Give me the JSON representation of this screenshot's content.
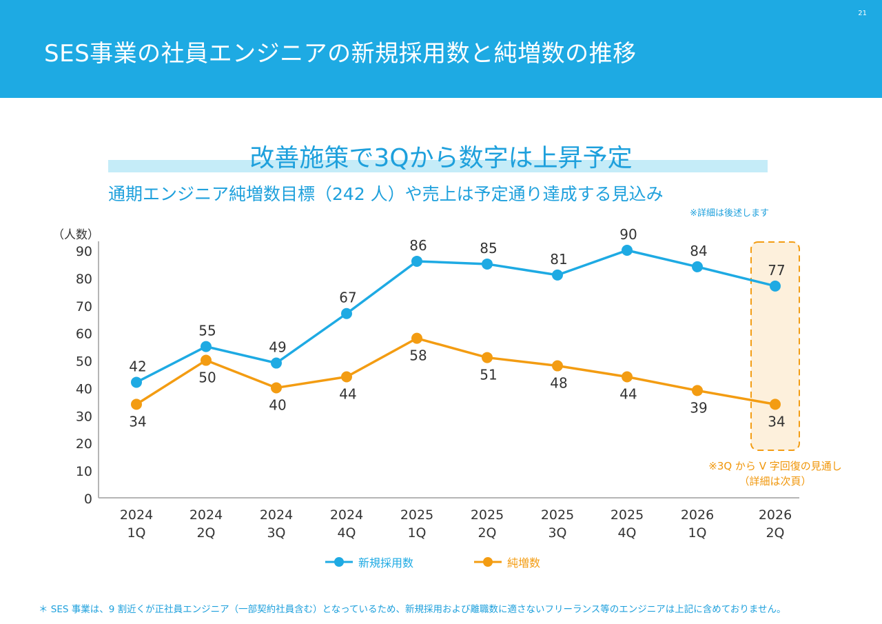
{
  "page": {
    "number": "21",
    "title": "SES事業の社員エンジニアの新規採用数と純増数の推移",
    "headline": "改善施策で3Qから数字は上昇予定",
    "subheadline": "通期エンジニア純増数目標（242 人）や売上は予定通り達成する見込み",
    "subnote": "※詳細は後述します",
    "annotation_line1": "※3Q から V 字回復の見通し",
    "annotation_line2": "（詳細は次頁）",
    "footnote": "＊ SES 事業は、9 割近くが正社員エンジニア（一部契約社員含む）となっているため、新規採用および離職数に適さないフリーランス等のエンジニアは上記に含めておりません。"
  },
  "colors": {
    "header_bg": "#1eaae3",
    "accent_text": "#1ea0dc",
    "series_hires": "#1eaae3",
    "series_net": "#f39c12",
    "highlight_fill": "#fdf0dc",
    "highlight_border": "#f39c12"
  },
  "chart_data": {
    "type": "line",
    "ylabel": "（人数）",
    "xlabel": "",
    "ylim": [
      0,
      90
    ],
    "yticks": [
      0,
      10,
      20,
      30,
      40,
      50,
      60,
      70,
      80,
      90
    ],
    "grid": false,
    "categories": [
      [
        "2024",
        "1Q"
      ],
      [
        "2024",
        "2Q"
      ],
      [
        "2024",
        "3Q"
      ],
      [
        "2024",
        "4Q"
      ],
      [
        "2025",
        "1Q"
      ],
      [
        "2025",
        "2Q"
      ],
      [
        "2025",
        "3Q"
      ],
      [
        "2025",
        "4Q"
      ],
      [
        "2026",
        "1Q"
      ],
      [
        "2026",
        "2Q"
      ]
    ],
    "series": [
      {
        "name": "新規採用数",
        "values": [
          42,
          55,
          49,
          67,
          86,
          85,
          81,
          90,
          84,
          77
        ],
        "label_position": "above"
      },
      {
        "name": "純増数",
        "values": [
          34,
          50,
          40,
          44,
          58,
          51,
          48,
          44,
          39,
          34
        ],
        "label_position": "below"
      }
    ],
    "highlight_category_index": 9,
    "legend_position": "bottom-center"
  }
}
